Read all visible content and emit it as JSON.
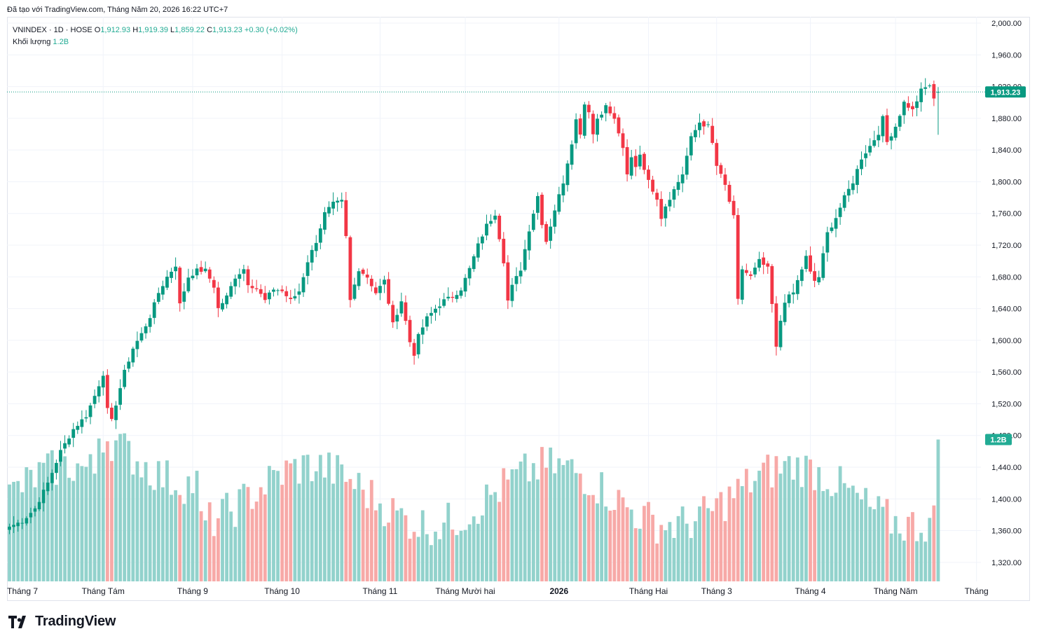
{
  "caption": "Đã tạo với TradingView.com, Tháng Năm 20, 2026 16:22 UTC+7",
  "legend": {
    "symbol": "VNINDEX · 1D · HOSE",
    "o_label": "O",
    "o_value": "1,912.93",
    "h_label": "H",
    "h_value": "1,919.39",
    "l_label": "L",
    "l_value": "1,859.22",
    "c_label": "C",
    "c_value": "1,913.23",
    "change": "+0.30 (+0.02%)",
    "volume_label": "Khối lượng",
    "volume_value": "1.2B"
  },
  "price_tag": "1,913.23",
  "volume_tag": "1.2B",
  "brand": "TradingView",
  "colors": {
    "up": "#089981",
    "down": "#f23645",
    "vol_up": "#92d2cc",
    "vol_down": "#f7a9a7",
    "grid": "#f0f3fa"
  },
  "chart_data": {
    "type": "candlestick",
    "y_ticks": [
      "2,000.00",
      "1,960.00",
      "1,920.00",
      "1,880.00",
      "1,840.00",
      "1,800.00",
      "1,760.00",
      "1,720.00",
      "1,680.00",
      "1,640.00",
      "1,600.00",
      "1,560.00",
      "1,520.00",
      "1,480.00",
      "1,440.00",
      "1,400.00",
      "1,360.00",
      "1,320.00"
    ],
    "y_tick_values": [
      2000,
      1960,
      1920,
      1880,
      1840,
      1800,
      1760,
      1720,
      1680,
      1640,
      1600,
      1560,
      1520,
      1480,
      1440,
      1400,
      1360,
      1320
    ],
    "ylim": [
      1296,
      2008
    ],
    "x_labels": [
      {
        "label": "Tháng 7",
        "index": 0,
        "bold": false
      },
      {
        "label": "Tháng Tám",
        "index": 22,
        "bold": false
      },
      {
        "label": "Tháng 9",
        "index": 43,
        "bold": false
      },
      {
        "label": "Tháng 10",
        "index": 64,
        "bold": false
      },
      {
        "label": "Tháng 11",
        "index": 87,
        "bold": false
      },
      {
        "label": "Tháng Mười hai",
        "index": 107,
        "bold": false
      },
      {
        "label": "2026",
        "index": 129,
        "bold": true
      },
      {
        "label": "Tháng Hai",
        "index": 150,
        "bold": false
      },
      {
        "label": "Tháng 3",
        "index": 166,
        "bold": false
      },
      {
        "label": "Tháng 4",
        "index": 188,
        "bold": false
      },
      {
        "label": "Tháng Năm",
        "index": 208,
        "bold": false
      },
      {
        "label": "Tháng",
        "index": 227,
        "bold": false
      }
    ],
    "close_anchors": [
      [
        0,
        1365
      ],
      [
        3,
        1372
      ],
      [
        6,
        1388
      ],
      [
        9,
        1420
      ],
      [
        12,
        1460
      ],
      [
        15,
        1488
      ],
      [
        18,
        1505
      ],
      [
        20,
        1530
      ],
      [
        22,
        1558
      ],
      [
        23,
        1512
      ],
      [
        24,
        1498
      ],
      [
        25,
        1520
      ],
      [
        27,
        1560
      ],
      [
        29,
        1590
      ],
      [
        31,
        1608
      ],
      [
        33,
        1630
      ],
      [
        35,
        1660
      ],
      [
        37,
        1680
      ],
      [
        39,
        1695
      ],
      [
        40,
        1645
      ],
      [
        42,
        1680
      ],
      [
        44,
        1688
      ],
      [
        46,
        1688
      ],
      [
        48,
        1668
      ],
      [
        49,
        1640
      ],
      [
        51,
        1655
      ],
      [
        53,
        1680
      ],
      [
        55,
        1690
      ],
      [
        56,
        1672
      ],
      [
        58,
        1665
      ],
      [
        60,
        1650
      ],
      [
        62,
        1665
      ],
      [
        64,
        1662
      ],
      [
        66,
        1650
      ],
      [
        68,
        1662
      ],
      [
        70,
        1700
      ],
      [
        72,
        1725
      ],
      [
        74,
        1760
      ],
      [
        76,
        1772
      ],
      [
        78,
        1775
      ],
      [
        79,
        1730
      ],
      [
        80,
        1650
      ],
      [
        82,
        1690
      ],
      [
        84,
        1680
      ],
      [
        86,
        1660
      ],
      [
        88,
        1675
      ],
      [
        90,
        1620
      ],
      [
        92,
        1650
      ],
      [
        94,
        1598
      ],
      [
        95,
        1583
      ],
      [
        96,
        1605
      ],
      [
        98,
        1628
      ],
      [
        100,
        1640
      ],
      [
        102,
        1650
      ],
      [
        104,
        1655
      ],
      [
        106,
        1665
      ],
      [
        108,
        1690
      ],
      [
        110,
        1720
      ],
      [
        112,
        1745
      ],
      [
        114,
        1760
      ],
      [
        115,
        1730
      ],
      [
        116,
        1700
      ],
      [
        117,
        1650
      ],
      [
        118,
        1668
      ],
      [
        120,
        1690
      ],
      [
        122,
        1740
      ],
      [
        124,
        1782
      ],
      [
        125,
        1748
      ],
      [
        126,
        1725
      ],
      [
        128,
        1765
      ],
      [
        130,
        1800
      ],
      [
        132,
        1850
      ],
      [
        133,
        1878
      ],
      [
        134,
        1862
      ],
      [
        135,
        1898
      ],
      [
        136,
        1890
      ],
      [
        137,
        1860
      ],
      [
        138,
        1880
      ],
      [
        140,
        1895
      ],
      [
        142,
        1878
      ],
      [
        143,
        1862
      ],
      [
        144,
        1840
      ],
      [
        145,
        1808
      ],
      [
        146,
        1830
      ],
      [
        147,
        1820
      ],
      [
        148,
        1835
      ],
      [
        150,
        1800
      ],
      [
        152,
        1780
      ],
      [
        153,
        1755
      ],
      [
        154,
        1770
      ],
      [
        156,
        1790
      ],
      [
        158,
        1810
      ],
      [
        160,
        1855
      ],
      [
        162,
        1875
      ],
      [
        163,
        1872
      ],
      [
        164,
        1870
      ],
      [
        165,
        1848
      ],
      [
        166,
        1820
      ],
      [
        168,
        1795
      ],
      [
        170,
        1755
      ],
      [
        171,
        1650
      ],
      [
        172,
        1690
      ],
      [
        174,
        1680
      ],
      [
        176,
        1700
      ],
      [
        178,
        1690
      ],
      [
        179,
        1645
      ],
      [
        180,
        1590
      ],
      [
        181,
        1625
      ],
      [
        182,
        1650
      ],
      [
        184,
        1660
      ],
      [
        186,
        1690
      ],
      [
        187,
        1705
      ],
      [
        188,
        1685
      ],
      [
        189,
        1675
      ],
      [
        190,
        1680
      ],
      [
        192,
        1735
      ],
      [
        194,
        1755
      ],
      [
        196,
        1780
      ],
      [
        198,
        1800
      ],
      [
        200,
        1830
      ],
      [
        202,
        1845
      ],
      [
        204,
        1862
      ],
      [
        205,
        1880
      ],
      [
        206,
        1850
      ],
      [
        208,
        1870
      ],
      [
        210,
        1900
      ],
      [
        212,
        1890
      ],
      [
        214,
        1915
      ],
      [
        216,
        1922
      ],
      [
        217,
        1903
      ],
      [
        218,
        1913.23
      ]
    ],
    "volume_axis_max": 1.6,
    "last_volume": 1.2
  }
}
